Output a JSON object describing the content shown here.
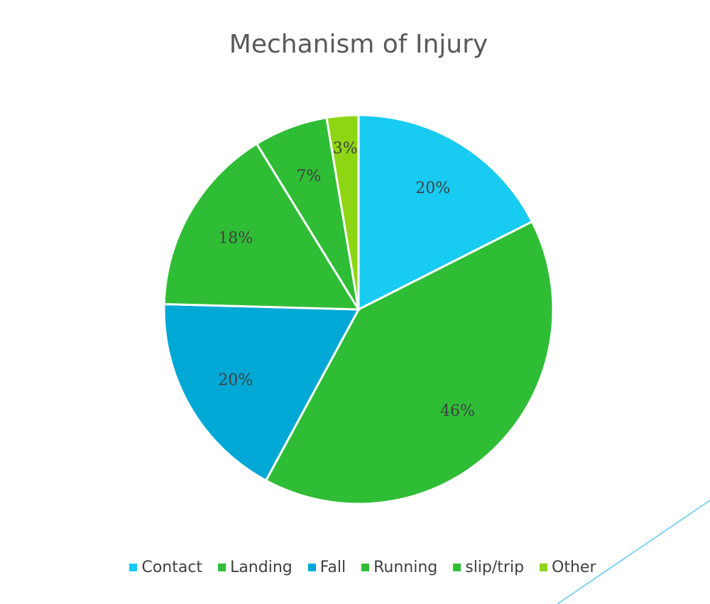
{
  "chart_data": {
    "type": "pie",
    "title": "Mechanism of Injury",
    "categories": [
      "Contact",
      "Landing",
      "Fall",
      "Running",
      "slip/trip",
      "Other"
    ],
    "values": [
      20,
      46,
      20,
      18,
      7,
      3
    ],
    "data_labels": [
      "20%",
      "46%",
      "20%",
      "18%",
      "7%",
      "3%"
    ],
    "colors": [
      "#17CBF1",
      "#2FBD36",
      "#00A8D6",
      "#2FBD36",
      "#2FBD36",
      "#8ED613"
    ],
    "legend_position": "bottom"
  }
}
